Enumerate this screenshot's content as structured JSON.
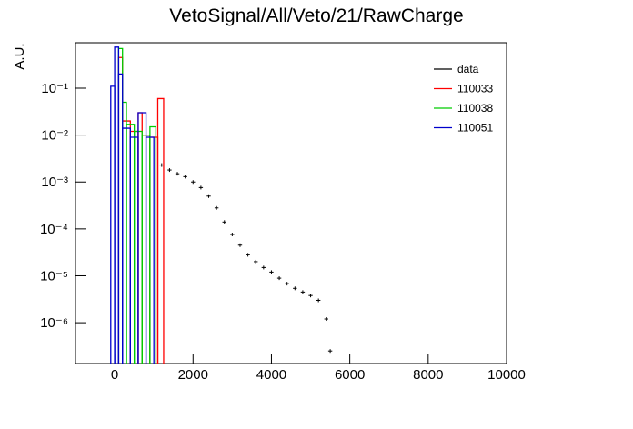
{
  "chart_data": {
    "type": "histogram",
    "title": "VetoSignal/All/Veto/21/RawCharge",
    "y_label": "A.U.",
    "log_y": true,
    "legend": "top-right",
    "xlim": [
      -1000,
      10000
    ],
    "xticks": [
      0,
      2000,
      4000,
      6000,
      8000,
      10000
    ],
    "ylim": [
      1.35e-07,
      0.93
    ],
    "yticks": [
      {
        "value": 0.1,
        "label": "10⁻¹"
      },
      {
        "value": 0.01,
        "label": "10⁻²"
      },
      {
        "value": 0.001,
        "label": "10⁻³"
      },
      {
        "value": 0.0001,
        "label": "10⁻⁴"
      },
      {
        "value": 1e-05,
        "label": "10⁻⁵"
      },
      {
        "value": 1e-06,
        "label": "10⁻⁶"
      }
    ],
    "series": [
      {
        "name": "data",
        "color": "#000000",
        "style": "points",
        "x": [
          1200,
          1400,
          1600,
          1800,
          2000,
          2200,
          2400,
          2600,
          2800,
          3000,
          3200,
          3400,
          3600,
          3800,
          4000,
          4200,
          4400,
          4600,
          4800,
          5000,
          5200,
          5400,
          5500
        ],
        "values": [
          0.0023,
          0.0018,
          0.0015,
          0.0013,
          0.001,
          0.00076,
          0.0005,
          0.00028,
          0.00014,
          7.6e-05,
          4.5e-05,
          2.8e-05,
          2e-05,
          1.5e-05,
          1.2e-05,
          8.9e-06,
          6.8e-06,
          5.4e-06,
          4.5e-06,
          3.8e-06,
          3e-06,
          1.2e-06,
          2.5e-07
        ]
      },
      {
        "name": "110033",
        "color": "#ff0000",
        "style": "step",
        "bins": [
          100,
          200,
          400,
          600,
          700,
          900,
          1100,
          1250
        ],
        "values": [
          0.45,
          0.02,
          0.012,
          0.03,
          0.01,
          0.009,
          0.06
        ]
      },
      {
        "name": "110038",
        "color": "#00cc00",
        "style": "step",
        "bins": [
          100,
          200,
          300,
          500,
          700,
          900,
          1050
        ],
        "values": [
          0.7,
          0.05,
          0.017,
          0.012,
          0.01,
          0.015
        ]
      },
      {
        "name": "110051",
        "color": "#0000cc",
        "style": "step",
        "bins": [
          -100,
          0,
          100,
          200,
          400,
          600,
          800,
          1000
        ],
        "values": [
          0.11,
          0.75,
          0.2,
          0.014,
          0.009,
          0.03,
          0.009
        ]
      }
    ]
  }
}
